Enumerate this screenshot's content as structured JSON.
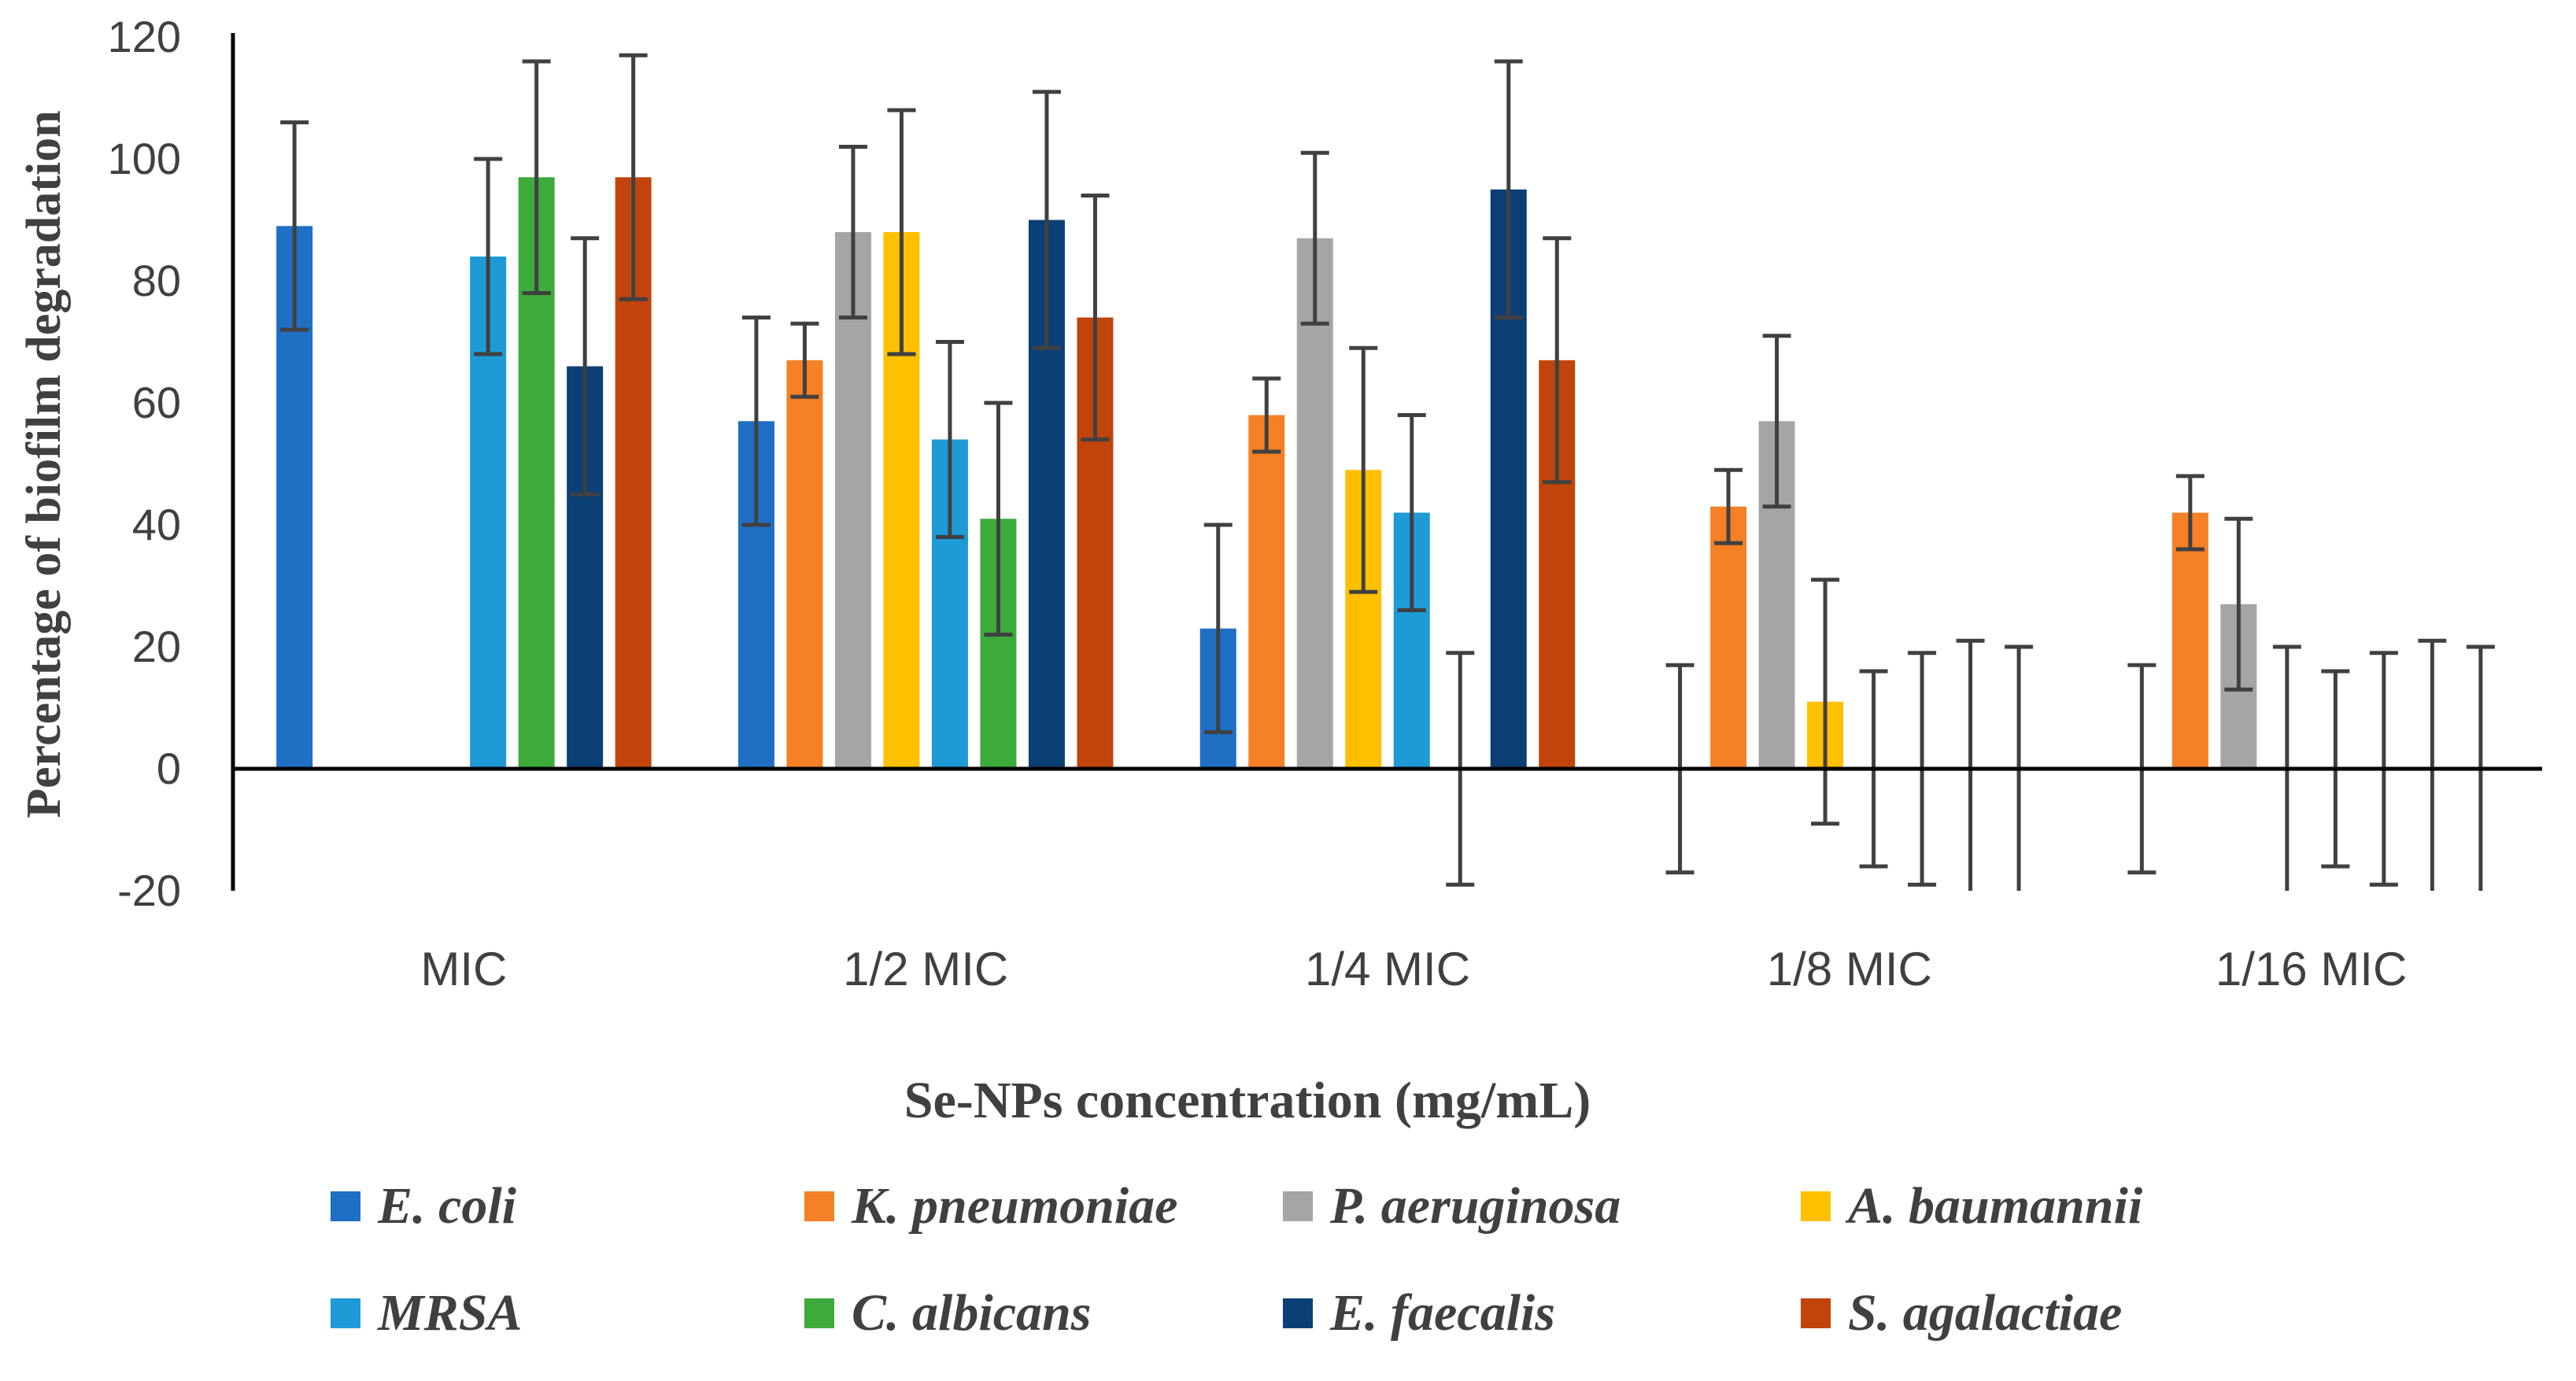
{
  "chart_data": {
    "type": "bar",
    "title": "",
    "xlabel": "Se-NPs concentration (mg/mL)",
    "ylabel": "Percentage of biofilm degradation",
    "ylim": [
      -20,
      120
    ],
    "yticks": [
      -20,
      0,
      20,
      40,
      60,
      80,
      100,
      120
    ],
    "grid": false,
    "legend_position": "bottom",
    "categories": [
      "MIC",
      "1/2 MIC",
      "1/4 MIC",
      "1/8 MIC",
      "1/16 MIC"
    ],
    "series": [
      {
        "name": "E. coli",
        "color": "#1f6fc5",
        "values": [
          89,
          57,
          23,
          0,
          0
        ],
        "errors": [
          17,
          17,
          17,
          17,
          17
        ]
      },
      {
        "name": "K. pneumoniae",
        "color": "#f58025",
        "values": [
          0,
          67,
          58,
          43,
          42
        ],
        "errors": [
          0,
          6,
          6,
          6,
          6
        ]
      },
      {
        "name": "P. aeruginosa",
        "color": "#a5a5a5",
        "values": [
          0,
          88,
          87,
          57,
          27
        ],
        "errors": [
          0,
          14,
          14,
          14,
          14
        ]
      },
      {
        "name": "A. baumannii",
        "color": "#ffc000",
        "values": [
          0,
          88,
          49,
          11,
          0
        ],
        "errors": [
          0,
          20,
          20,
          20,
          20
        ]
      },
      {
        "name": "MRSA",
        "color": "#1e9ad6",
        "values": [
          84,
          54,
          42,
          0,
          0
        ],
        "errors": [
          16,
          16,
          16,
          16,
          16
        ]
      },
      {
        "name": "C. albicans",
        "color": "#3cab3c",
        "values": [
          97,
          41,
          0,
          0,
          0
        ],
        "errors": [
          19,
          19,
          19,
          19,
          19
        ]
      },
      {
        "name": "E. faecalis",
        "color": "#0c3f75",
        "values": [
          66,
          90,
          95,
          0,
          0
        ],
        "errors": [
          21,
          21,
          21,
          21,
          21
        ]
      },
      {
        "name": "S. agalactiae",
        "color": "#c0440c",
        "values": [
          97,
          74,
          67,
          0,
          0
        ],
        "errors": [
          20,
          20,
          20,
          20,
          20
        ]
      }
    ]
  }
}
